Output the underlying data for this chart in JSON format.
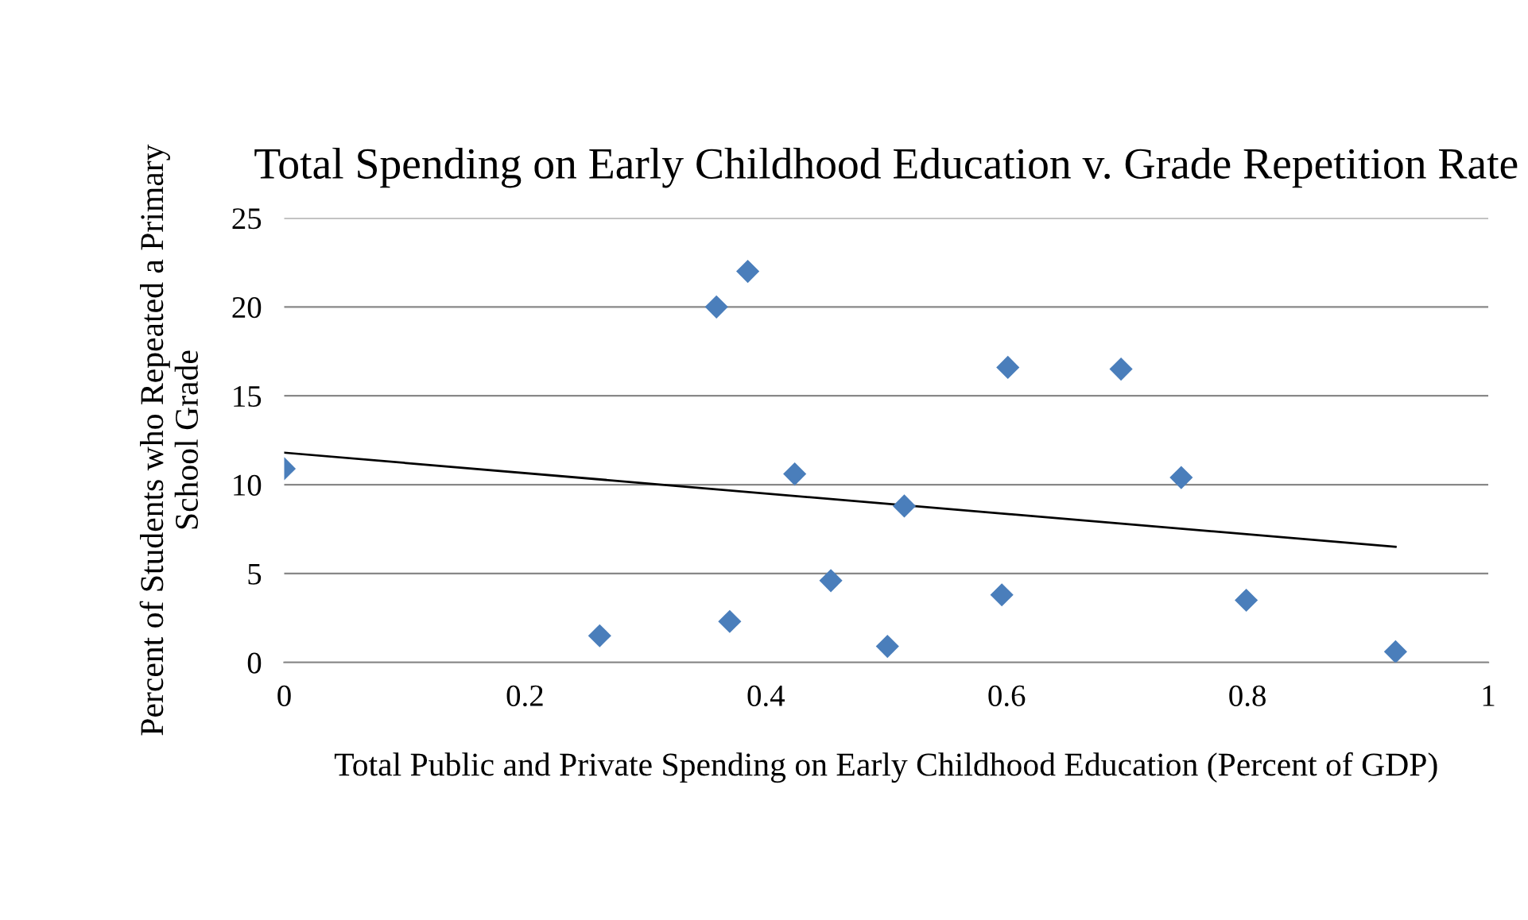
{
  "chart_data": {
    "type": "scatter",
    "title": "Total Spending on Early Childhood Education v. Grade Repetition Rate",
    "xlabel": "Total Public and Private Spending on Early Childhood Education (Percent of GDP)",
    "ylabel": "Percent of Students who Repeated a Primary School Grade",
    "series": [
      {
        "color": "#4a7ebb",
        "marker": "diamond",
        "x": [
          0.0,
          0.262,
          0.359,
          0.37,
          0.385,
          0.424,
          0.454,
          0.501,
          0.515,
          0.596,
          0.601,
          0.695,
          0.745,
          0.799,
          0.923
        ],
        "values": [
          10.9,
          1.5,
          20.0,
          2.3,
          22.0,
          10.6,
          4.6,
          0.9,
          8.8,
          3.8,
          16.6,
          16.5,
          10.4,
          3.5,
          0.6
        ]
      },
      {
        "type": "line",
        "color": "#000000",
        "marker": "none",
        "x": [
          0.0,
          0.923
        ],
        "values": [
          11.8,
          6.5
        ]
      }
    ],
    "xlim": [
      0,
      1
    ],
    "xticks": [
      0,
      0.2,
      0.4,
      0.6,
      0.8,
      1
    ],
    "ylim": [
      0,
      25
    ],
    "yticks": [
      0,
      5,
      10,
      15,
      20,
      25
    ],
    "grid": "y",
    "legend": false
  }
}
